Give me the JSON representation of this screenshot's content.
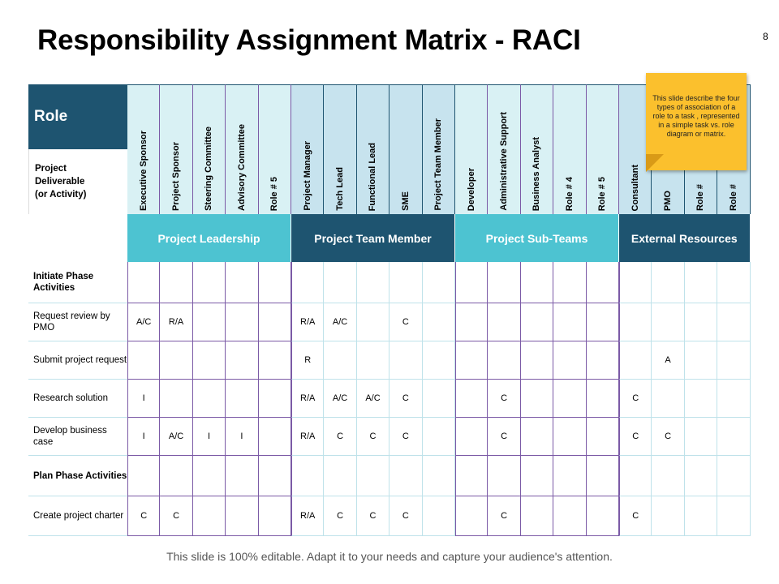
{
  "title": "Responsibility Assignment Matrix - RACI",
  "page_number": "8",
  "footer": "This slide is 100% editable. Adapt it to your needs and capture your audience's attention.",
  "note": "This slide describe the four types of association of a role to a task , represented in a simple task vs. role diagram or matrix.",
  "corner": {
    "role_label": "Role",
    "deliverable_label": "Project Deliverable (or Activity)"
  },
  "roles": [
    "Executive Sponsor",
    "Project Sponsor",
    "Steering Committee",
    "Advisory Committee",
    "Role # 5",
    "Project Manager",
    "Tech Lead",
    "Functional Lead",
    "SME",
    "Project Team Member",
    "Developer",
    "Administrative Support",
    "Business Analyst",
    "Role # 4",
    "Role # 5",
    "Consultant",
    "PMO",
    "Role #",
    "Role #"
  ],
  "groups": [
    {
      "label": "Project Leadership",
      "span": 5,
      "header_color": "#4dc3d1",
      "role_color": "#d9f1f4",
      "dark": false
    },
    {
      "label": "Project Team Member",
      "span": 5,
      "header_color": "#1e5470",
      "role_color": "#c7e3ee",
      "dark": true
    },
    {
      "label": "Project Sub-Teams",
      "span": 5,
      "header_color": "#4dc3d1",
      "role_color": "#d9f1f4",
      "dark": false
    },
    {
      "label": "External Resources",
      "span": 4,
      "header_color": "#1e5470",
      "role_color": "#c7e3ee",
      "dark": true
    }
  ],
  "rows": [
    {
      "label": "Initiate Phase Activities",
      "bold": true,
      "cells": [
        "",
        "",
        "",
        "",
        "",
        "",
        "",
        "",
        "",
        "",
        "",
        "",
        "",
        "",
        "",
        "",
        "",
        "",
        ""
      ]
    },
    {
      "label": "Request review by PMO",
      "bold": false,
      "cells": [
        "A/C",
        "R/A",
        "",
        "",
        "",
        "R/A",
        "A/C",
        "",
        "C",
        "",
        "",
        "",
        "",
        "",
        "",
        "",
        "",
        "",
        ""
      ]
    },
    {
      "label": "Submit project request",
      "bold": false,
      "cells": [
        "",
        "",
        "",
        "",
        "",
        "R",
        "",
        "",
        "",
        "",
        "",
        "",
        "",
        "",
        "",
        "",
        "A",
        "",
        ""
      ]
    },
    {
      "label": "Research solution",
      "bold": false,
      "cells": [
        "I",
        "",
        "",
        "",
        "",
        "R/A",
        "A/C",
        "A/C",
        "C",
        "",
        "",
        "C",
        "",
        "",
        "",
        "C",
        "",
        "",
        ""
      ]
    },
    {
      "label": "Develop business case",
      "bold": false,
      "cells": [
        "I",
        "A/C",
        "I",
        "I",
        "",
        "R/A",
        "C",
        "C",
        "C",
        "",
        "",
        "C",
        "",
        "",
        "",
        "C",
        "C",
        "",
        ""
      ]
    },
    {
      "label": "Plan Phase Activities",
      "bold": true,
      "cells": [
        "",
        "",
        "",
        "",
        "",
        "",
        "",
        "",
        "",
        "",
        "",
        "",
        "",
        "",
        "",
        "",
        "",
        "",
        ""
      ]
    },
    {
      "label": "Create project charter",
      "bold": false,
      "cells": [
        "C",
        "C",
        "",
        "",
        "",
        "R/A",
        "C",
        "C",
        "C",
        "",
        "",
        "C",
        "",
        "",
        "",
        "C",
        "",
        "",
        ""
      ]
    }
  ],
  "colors": {
    "role_header_bg": "#1e5470",
    "grid_purple": "#7b5aa6",
    "grid_light": "#bfe2ea",
    "note_yellow": "#fbc02d"
  }
}
